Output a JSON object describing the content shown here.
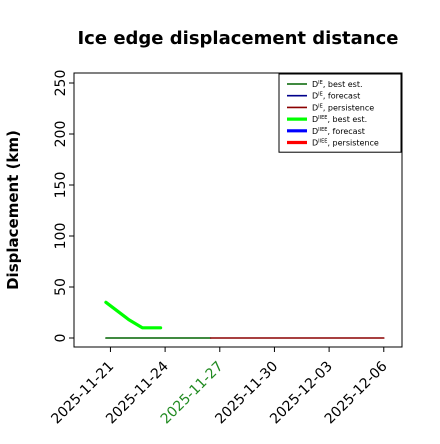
{
  "chart_data": {
    "type": "line",
    "title": "Ice edge displacement distance",
    "xlabel": "",
    "ylabel": "Displacement (km)",
    "ylim": [
      0,
      260
    ],
    "yticks": [
      0,
      50,
      100,
      150,
      200,
      250
    ],
    "xlim": [
      "2025-11-19T00:00",
      "2025-12-07T00:00"
    ],
    "xticks": [
      "2025-11-21",
      "2025-11-24",
      "2025-11-27",
      "2025-11-30",
      "2025-12-03",
      "2025-12-06"
    ],
    "highlight_tick": "2025-11-27",
    "highlight_color": "#228B22",
    "grid": false,
    "legend_position": "upper right",
    "series": [
      {
        "name": "D^IE, best est.",
        "color": "#006400",
        "width": "thin",
        "points": [
          [
            "2025-11-20T18:00",
            0
          ],
          [
            "2025-11-26T12:00",
            0
          ]
        ]
      },
      {
        "name": "D^IE, forecast",
        "color": "#00008B",
        "width": "thin",
        "points": []
      },
      {
        "name": "D^IE, persistence",
        "color": "#8B0000",
        "width": "thin",
        "points": [
          [
            "2025-11-26T12:00",
            0
          ],
          [
            "2025-12-06T00:00",
            0
          ]
        ]
      },
      {
        "name": "D^IIEE, best est.",
        "color": "#00FF00",
        "width": "thick",
        "points": [
          [
            "2025-11-20T18:00",
            35
          ],
          [
            "2025-11-22T00:00",
            18
          ],
          [
            "2025-11-22T18:00",
            10
          ],
          [
            "2025-11-23T18:00",
            10
          ]
        ]
      },
      {
        "name": "D^IIEE, forecast",
        "color": "#0000FF",
        "width": "thick",
        "points": []
      },
      {
        "name": "D^IIEE, persistence",
        "color": "#FF0000",
        "width": "thick",
        "points": []
      }
    ],
    "legend": [
      {
        "base": "D",
        "sup": "IE",
        "rest": ", best est."
      },
      {
        "base": "D",
        "sup": "IE",
        "rest": ", forecast"
      },
      {
        "base": "D",
        "sup": "IE",
        "rest": ", persistence"
      },
      {
        "base": "D",
        "sup": "IIEE",
        "rest": ", best est."
      },
      {
        "base": "D",
        "sup": "IIEE",
        "rest": ", forecast"
      },
      {
        "base": "D",
        "sup": "IIEE",
        "rest": ", persistence"
      }
    ]
  }
}
